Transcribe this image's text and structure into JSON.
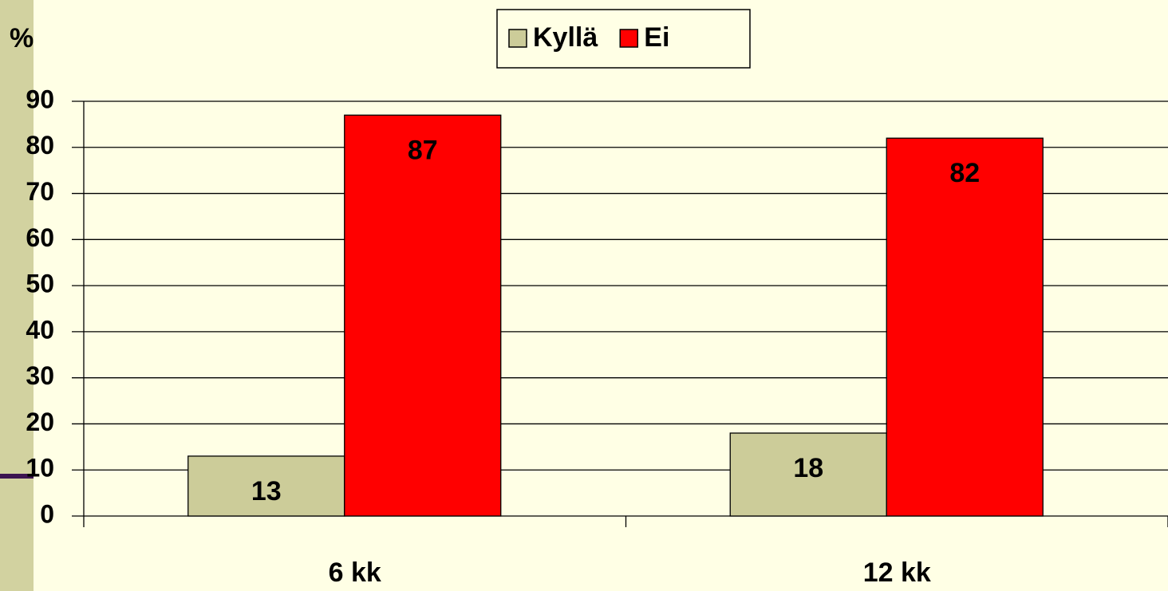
{
  "chart_data": {
    "type": "bar",
    "y_label": "%",
    "categories": [
      "6 kk",
      "12 kk"
    ],
    "series": [
      {
        "name": "Kyllä",
        "color": "#cccc99",
        "values": [
          13,
          18
        ]
      },
      {
        "name": "Ei",
        "color": "#ff0000",
        "values": [
          87,
          82
        ]
      }
    ],
    "ylim": [
      0,
      90
    ],
    "yticks": [
      0,
      10,
      20,
      30,
      40,
      50,
      60,
      70,
      80,
      90
    ],
    "grid": true,
    "legend": "top"
  }
}
